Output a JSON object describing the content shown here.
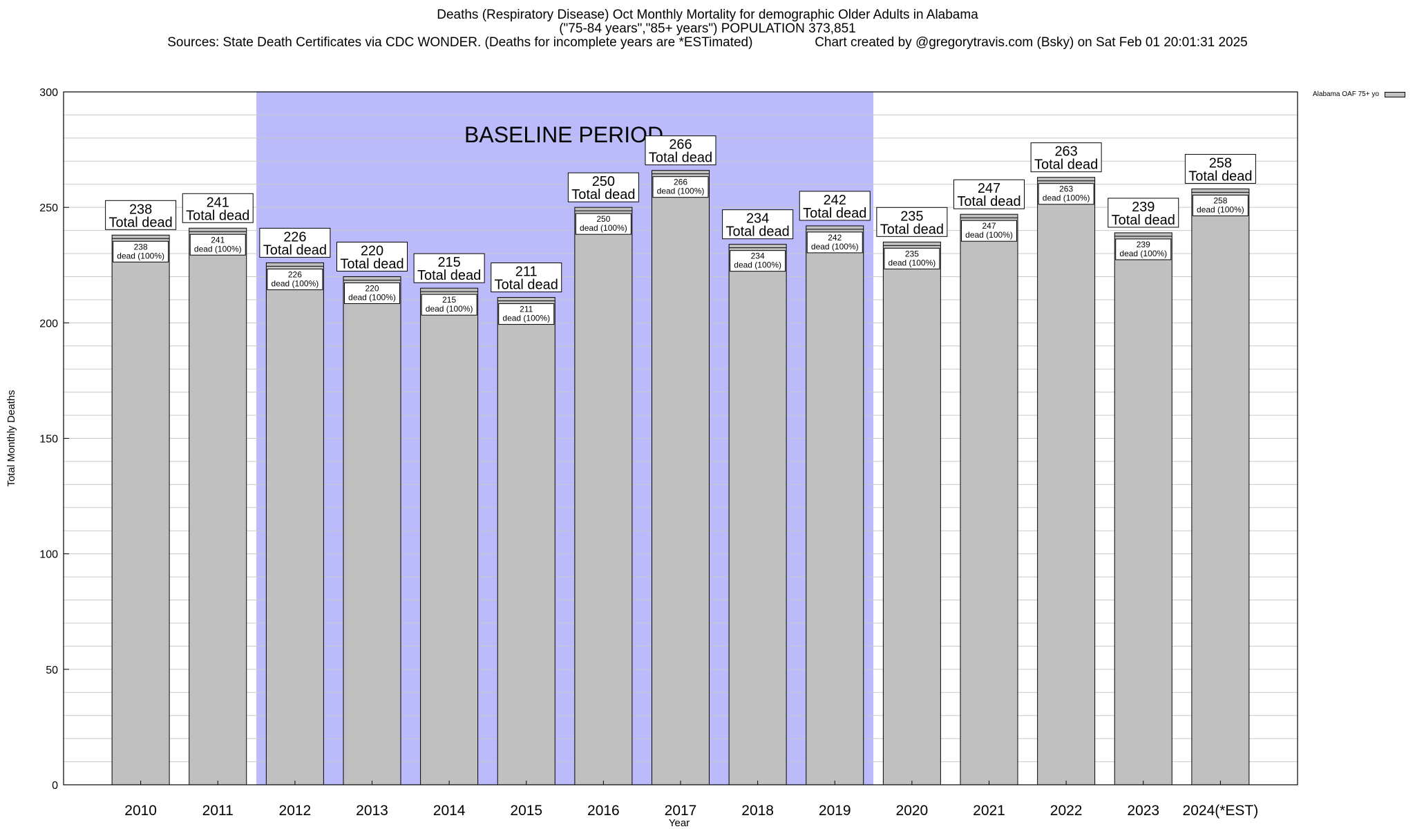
{
  "chart_data": {
    "type": "bar",
    "title_lines": [
      "Deaths (Respiratory Disease) Oct Monthly Mortality for demographic Older Adults in Alabama",
      "(\"75-84 years\",\"85+ years\") POPULATION 373,851"
    ],
    "sources": "Sources: State Death Certificates via CDC WONDER. (Deaths for incomplete years are *ESTimated)",
    "credit": "Chart created by @gregorytravis.com (Bsky) on Sat Feb 01 20:01:31 2025",
    "xlabel": "Year",
    "ylabel": "Total Monthly Deaths",
    "ylim": [
      0,
      300
    ],
    "yticks": [
      0,
      50,
      100,
      150,
      200,
      250,
      300
    ],
    "grid": true,
    "categories": [
      "2010",
      "2011",
      "2012",
      "2013",
      "2014",
      "2015",
      "2016",
      "2017",
      "2018",
      "2019",
      "2020",
      "2021",
      "2022",
      "2023",
      "2024(*EST)"
    ],
    "series": [
      {
        "name": "Alabama OAF 75+ yo",
        "values": [
          238,
          241,
          226,
          220,
          215,
          211,
          250,
          266,
          234,
          242,
          235,
          247,
          263,
          239,
          258
        ]
      }
    ],
    "total_label_suffix": "Total dead",
    "inner_label_suffix": "dead (100%)",
    "baseline": {
      "label": "BASELINE PERIOD",
      "from": "2012",
      "to": "2019"
    },
    "legend_position": "top-right",
    "colors": {
      "bar": "#c0c0c0",
      "baseline": "#bbbbfc",
      "grid": "#c8c8c8",
      "frame": "#000000"
    }
  }
}
